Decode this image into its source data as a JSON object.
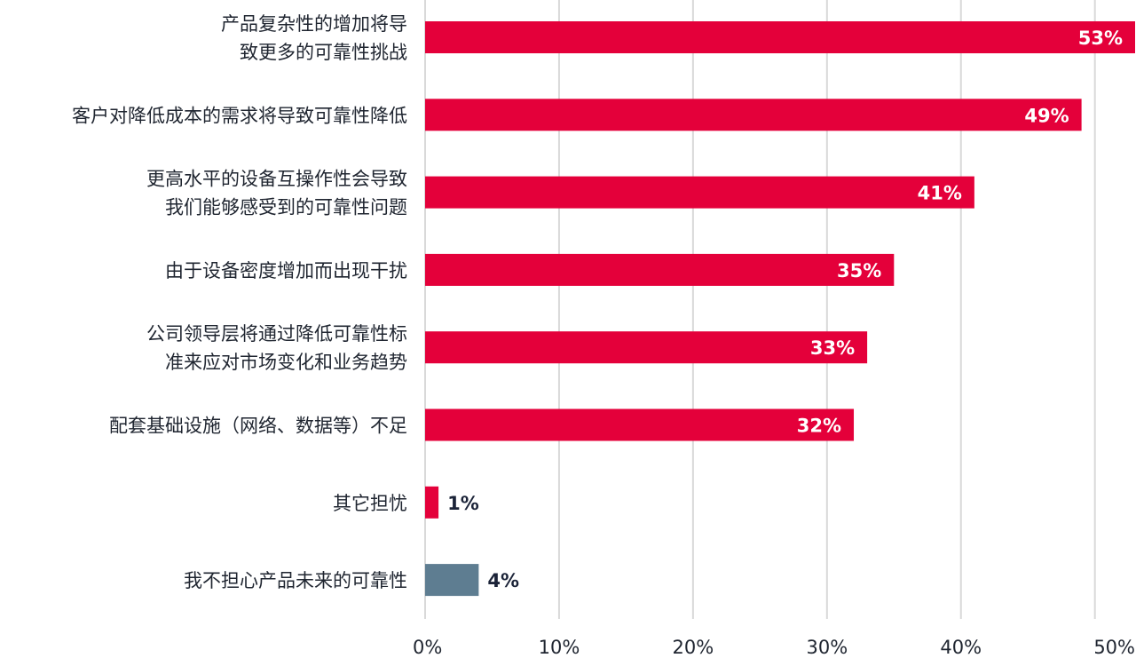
{
  "chart_data": {
    "type": "bar",
    "orientation": "horizontal",
    "categories": [
      [
        "产品复杂性的增加将导",
        "致更多的可靠性挑战"
      ],
      [
        "客户对降低成本的需求将导致可靠性降低"
      ],
      [
        "更高水平的设备互操作性会导致",
        "我们能够感受到的可靠性问题"
      ],
      [
        "由于设备密度增加而出现干扰"
      ],
      [
        "公司领导层将通过降低可靠性标",
        "准来应对市场变化和业务趋势"
      ],
      [
        "配套基础设施（网络、数据等）不足"
      ],
      [
        "其它担忧"
      ],
      [
        "我不担心产品未来的可靠性"
      ]
    ],
    "values": [
      53,
      49,
      41,
      35,
      33,
      32,
      1,
      4
    ],
    "value_labels": [
      "53%",
      "49%",
      "41%",
      "35%",
      "33%",
      "32%",
      "1%",
      "4%"
    ],
    "bar_colors": [
      "#e4003a",
      "#e4003a",
      "#e4003a",
      "#e4003a",
      "#e4003a",
      "#e4003a",
      "#e4003a",
      "#5e7d91"
    ],
    "xlim": [
      0,
      53
    ],
    "xticks": [
      0,
      10,
      20,
      30,
      40,
      50
    ],
    "xtick_labels": [
      "0%",
      "10%",
      "20%",
      "30%",
      "40%",
      "50%"
    ],
    "grid": true,
    "legend": "none",
    "title": "",
    "xlabel": "",
    "ylabel": ""
  }
}
